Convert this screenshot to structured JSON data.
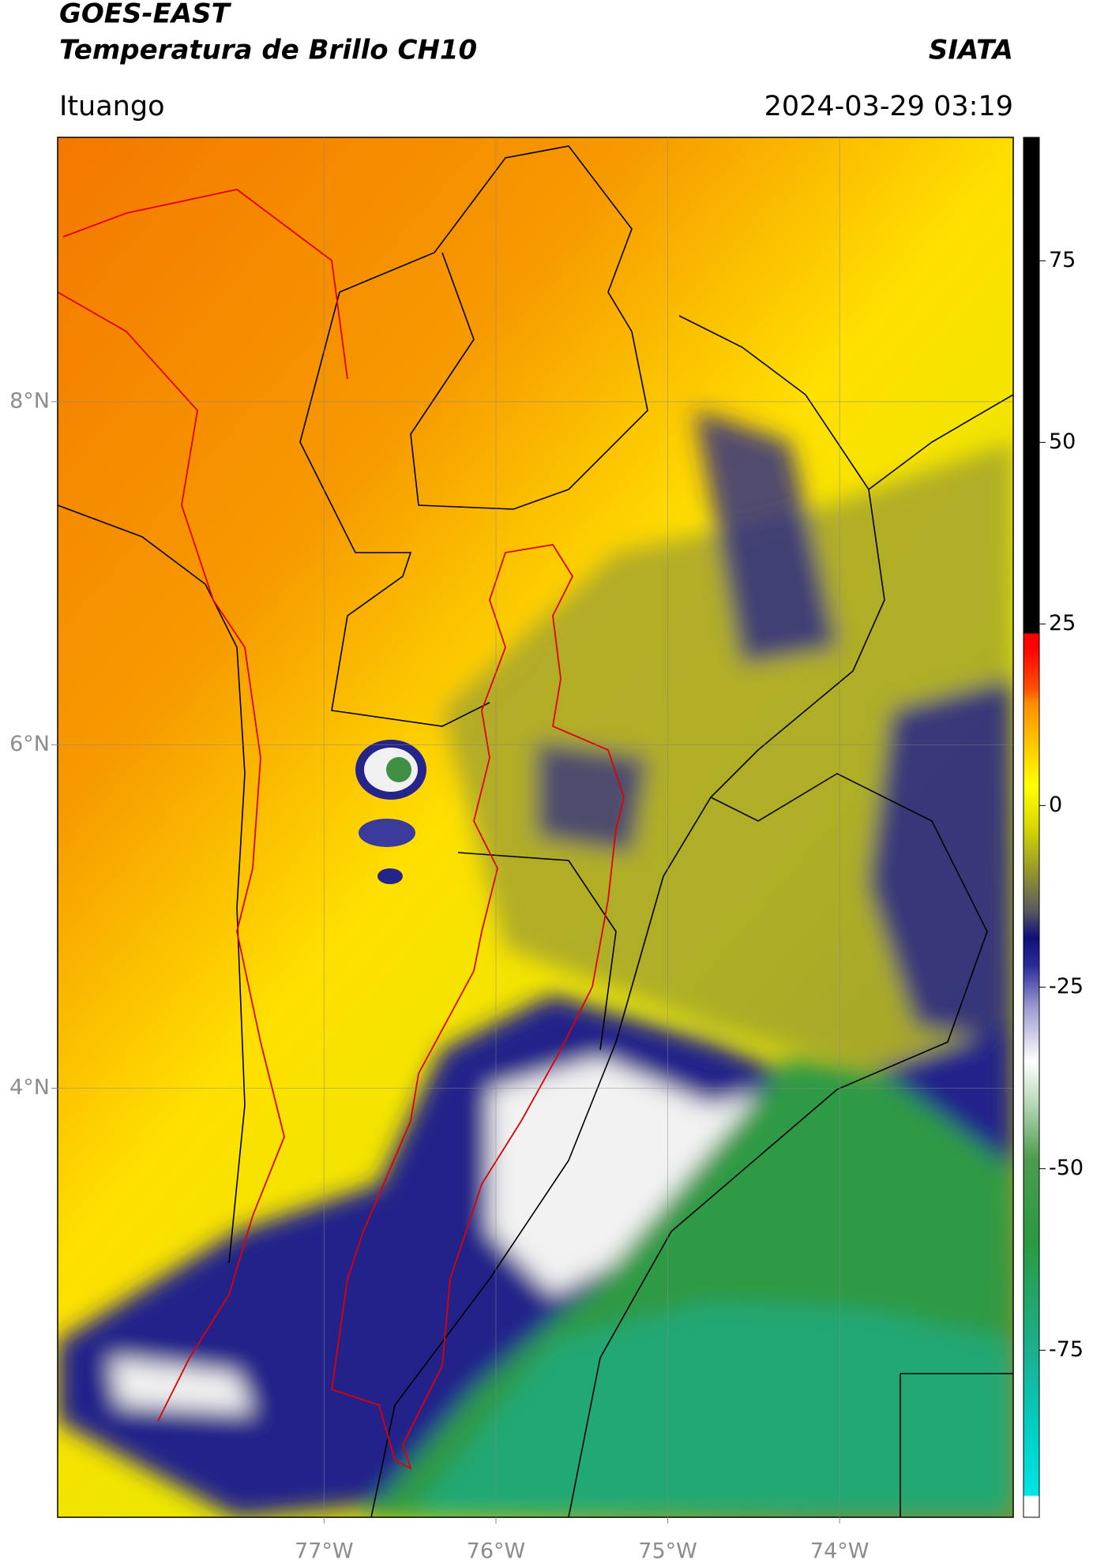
{
  "header": {
    "title": "GOES-EAST",
    "subtitle": "Temperatura de Brillo CH10",
    "brand": "SIATA",
    "location": "Ituango",
    "datetime": "2024-03-29 03:19"
  },
  "map": {
    "xlim": [
      -78.55,
      -72.99
    ],
    "ylim": [
      1.5,
      9.54
    ],
    "xticks": [
      {
        "value": -77,
        "label": "77°W"
      },
      {
        "value": -76,
        "label": "76°W"
      },
      {
        "value": -75,
        "label": "75°W"
      },
      {
        "value": -74,
        "label": "74°W"
      }
    ],
    "yticks": [
      {
        "value": 4,
        "label": "4°N"
      },
      {
        "value": 6,
        "label": "6°N"
      },
      {
        "value": 8,
        "label": "8°N"
      }
    ],
    "grid": true
  },
  "colorbar": {
    "clim": [
      -98,
      92
    ],
    "ticks": [
      -75,
      -50,
      -25,
      0,
      25,
      50,
      75
    ]
  }
}
